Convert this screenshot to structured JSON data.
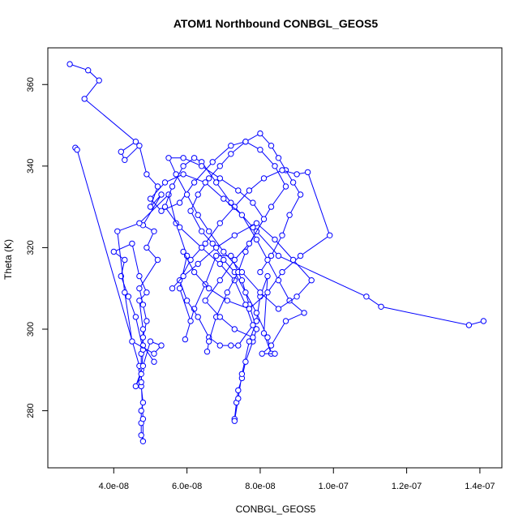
{
  "chart_data": {
    "type": "line",
    "title": "ATOM1 Northbound CONBGL_GEOS5",
    "xlabel": "CONBGL_GEOS5",
    "ylabel": "Theta (K)",
    "xlim": [
      2.2e-08,
      1.46e-07
    ],
    "ylim": [
      266,
      369
    ],
    "x_ticks": [
      {
        "value": 4e-08,
        "label": "4.0e-08"
      },
      {
        "value": 6e-08,
        "label": "6.0e-08"
      },
      {
        "value": 8e-08,
        "label": "8.0e-08"
      },
      {
        "value": 1e-07,
        "label": "1.0e-07"
      },
      {
        "value": 1.2e-07,
        "label": "1.2e-07"
      },
      {
        "value": 1.4e-07,
        "label": "1.4e-07"
      }
    ],
    "y_ticks": [
      {
        "value": 280,
        "label": "280"
      },
      {
        "value": 300,
        "label": "300"
      },
      {
        "value": 320,
        "label": "320"
      },
      {
        "value": 340,
        "label": "340"
      },
      {
        "value": 360,
        "label": "360"
      }
    ],
    "grid": false,
    "legend": "none",
    "series_color": "#0000ff",
    "marker": "open-circle",
    "series": [
      {
        "points": [
          [
            2.8e-08,
            365
          ],
          [
            3.3e-08,
            363.5
          ],
          [
            3.6e-08,
            361
          ],
          [
            3.2e-08,
            356.5
          ],
          [
            4.6e-08,
            346
          ],
          [
            4.2e-08,
            343.5
          ],
          [
            4.3e-08,
            341.5
          ],
          [
            4.7e-08,
            345
          ],
          [
            4.9e-08,
            338
          ],
          [
            5.2e-08,
            335
          ],
          [
            5e-08,
            330
          ],
          [
            5.3e-08,
            333
          ],
          [
            4.8e-08,
            325.5
          ],
          [
            5.1e-08,
            324
          ],
          [
            4.9e-08,
            320
          ],
          [
            5.2e-08,
            317
          ],
          [
            4.7e-08,
            310
          ],
          [
            4.8e-08,
            306
          ],
          [
            4.9e-08,
            302
          ],
          [
            4.8e-08,
            298
          ],
          [
            4.75e-08,
            294
          ],
          [
            4.75e-08,
            290
          ],
          [
            4.75e-08,
            286
          ],
          [
            4.8e-08,
            282
          ],
          [
            4.75e-08,
            280
          ],
          [
            4.75e-08,
            277
          ],
          [
            4.75e-08,
            274
          ],
          [
            4.8e-08,
            272.5
          ],
          [
            4.8e-08,
            278
          ],
          [
            4.75e-08,
            287
          ],
          [
            4.8e-08,
            295
          ],
          [
            4.6e-08,
            303
          ],
          [
            4.4e-08,
            308
          ],
          [
            4.2e-08,
            313
          ],
          [
            4.3e-08,
            317
          ],
          [
            4e-08,
            319
          ],
          [
            4.5e-08,
            321
          ],
          [
            4.7e-08,
            313
          ],
          [
            4.9e-08,
            309
          ],
          [
            4.7e-08,
            307
          ],
          [
            4.8e-08,
            300
          ],
          [
            4.8e-08,
            296
          ],
          [
            5.1e-08,
            292
          ]
        ]
      },
      {
        "points": [
          [
            2.95e-08,
            344.5
          ],
          [
            3e-08,
            344
          ],
          [
            4.7e-08,
            291
          ],
          [
            4.75e-08,
            289
          ],
          [
            4.6e-08,
            286
          ],
          [
            4.8e-08,
            291
          ],
          [
            5e-08,
            297
          ],
          [
            5.3e-08,
            296
          ],
          [
            5.1e-08,
            294
          ],
          [
            4.5e-08,
            297
          ],
          [
            4.3e-08,
            309
          ],
          [
            4.1e-08,
            324
          ],
          [
            4.7e-08,
            326
          ],
          [
            5.5e-08,
            333
          ],
          [
            5.7e-08,
            326
          ],
          [
            6e-08,
            318
          ],
          [
            5.8e-08,
            310
          ],
          [
            6.1e-08,
            302
          ],
          [
            5.95e-08,
            297.5
          ],
          [
            6.2e-08,
            305
          ],
          [
            6.5e-08,
            311
          ],
          [
            6.8e-08,
            318
          ],
          [
            7.2e-08,
            318
          ],
          [
            7.5e-08,
            312
          ],
          [
            7.7e-08,
            306
          ],
          [
            7.9e-08,
            300
          ],
          [
            7.8e-08,
            297
          ],
          [
            7.6e-08,
            292
          ],
          [
            7.5e-08,
            288
          ],
          [
            7.4e-08,
            285
          ],
          [
            7.35e-08,
            282
          ],
          [
            7.3e-08,
            278
          ],
          [
            7.3e-08,
            277.5
          ],
          [
            7.4e-08,
            283
          ],
          [
            7.5e-08,
            289
          ],
          [
            7.7e-08,
            297
          ],
          [
            7.9e-08,
            302
          ],
          [
            8e-08,
            308
          ],
          [
            8.2e-08,
            313
          ],
          [
            8.1e-08,
            299
          ],
          [
            8.3e-08,
            294
          ],
          [
            8.2e-08,
            298
          ],
          [
            7.9e-08,
            304
          ],
          [
            7.6e-08,
            309
          ],
          [
            7.3e-08,
            314
          ],
          [
            7e-08,
            317
          ],
          [
            6.7e-08,
            321
          ],
          [
            6.4e-08,
            324
          ],
          [
            6.1e-08,
            329
          ],
          [
            6.3e-08,
            333
          ],
          [
            6.6e-08,
            337
          ],
          [
            6.9e-08,
            340
          ],
          [
            7.2e-08,
            343
          ],
          [
            7.6e-08,
            346
          ],
          [
            8e-08,
            348
          ],
          [
            8.3e-08,
            345
          ],
          [
            8.5e-08,
            342
          ],
          [
            8.7e-08,
            339
          ],
          [
            8.9e-08,
            336
          ],
          [
            9.1e-08,
            333
          ],
          [
            8.8e-08,
            328
          ],
          [
            8.6e-08,
            323
          ],
          [
            8.3e-08,
            318
          ],
          [
            8e-08,
            314
          ]
        ]
      },
      {
        "points": [
          [
            1.41e-07,
            302
          ],
          [
            1.37e-07,
            301
          ],
          [
            1.13e-07,
            305.5
          ],
          [
            1.09e-07,
            308
          ],
          [
            8.5e-08,
            318
          ],
          [
            7.8e-08,
            325
          ],
          [
            7.2e-08,
            331
          ],
          [
            6.8e-08,
            336
          ],
          [
            6.4e-08,
            341
          ],
          [
            6.2e-08,
            342
          ],
          [
            5.9e-08,
            340
          ],
          [
            5.6e-08,
            335
          ],
          [
            5.4e-08,
            330
          ],
          [
            5.8e-08,
            325
          ],
          [
            6.4e-08,
            320
          ],
          [
            6.9e-08,
            316
          ],
          [
            7.3e-08,
            312
          ],
          [
            7.6e-08,
            306
          ],
          [
            7.8e-08,
            301
          ],
          [
            7.4e-08,
            296
          ],
          [
            7.2e-08,
            296
          ],
          [
            6.9e-08,
            296
          ],
          [
            6.6e-08,
            298
          ],
          [
            6.3e-08,
            303
          ],
          [
            6e-08,
            307
          ],
          [
            5.8e-08,
            312
          ],
          [
            6.1e-08,
            317
          ],
          [
            6.5e-08,
            321
          ],
          [
            6.9e-08,
            326
          ],
          [
            7.3e-08,
            330
          ],
          [
            7.7e-08,
            334
          ],
          [
            8.1e-08,
            337
          ],
          [
            8.6e-08,
            339
          ],
          [
            9e-08,
            338
          ],
          [
            9.3e-08,
            338.5
          ],
          [
            9.9e-08,
            323
          ],
          [
            9.1e-08,
            318
          ],
          [
            8.6e-08,
            314
          ],
          [
            8.2e-08,
            309
          ],
          [
            7.7e-08,
            305
          ],
          [
            7.1e-08,
            307
          ],
          [
            6.6e-08,
            310
          ],
          [
            6.2e-08,
            314
          ],
          [
            5.9e-08,
            319
          ]
        ]
      },
      {
        "points": [
          [
            6.55e-08,
            294.5
          ],
          [
            6.6e-08,
            297
          ],
          [
            6.8e-08,
            303
          ],
          [
            7.1e-08,
            309
          ],
          [
            7.4e-08,
            314
          ],
          [
            7.6e-08,
            319
          ],
          [
            7.9e-08,
            324
          ],
          [
            8.3e-08,
            330
          ],
          [
            8.7e-08,
            335
          ],
          [
            8.4e-08,
            340
          ],
          [
            8e-08,
            344
          ],
          [
            7.6e-08,
            346
          ],
          [
            7.2e-08,
            345
          ],
          [
            6.7e-08,
            341
          ],
          [
            6.2e-08,
            336
          ],
          [
            5.8e-08,
            331
          ],
          [
            5.3e-08,
            329
          ],
          [
            5e-08,
            332
          ],
          [
            5.4e-08,
            336
          ],
          [
            5.9e-08,
            338
          ],
          [
            6.5e-08,
            336
          ],
          [
            7e-08,
            332
          ],
          [
            7.5e-08,
            328
          ],
          [
            7.9e-08,
            322
          ],
          [
            8.2e-08,
            317
          ],
          [
            8.5e-08,
            312
          ],
          [
            8.8e-08,
            307
          ],
          [
            9.2e-08,
            304
          ],
          [
            8.7e-08,
            302
          ],
          [
            8.3e-08,
            296
          ],
          [
            8.05e-08,
            294
          ],
          [
            8.4e-08,
            294
          ]
        ]
      },
      {
        "points": [
          [
            5.6e-08,
            310
          ],
          [
            5.9e-08,
            313
          ],
          [
            6.3e-08,
            316
          ],
          [
            6.8e-08,
            320
          ],
          [
            7.3e-08,
            323
          ],
          [
            7.9e-08,
            326
          ],
          [
            8.4e-08,
            322
          ],
          [
            8.9e-08,
            317
          ],
          [
            9.4e-08,
            312
          ],
          [
            9e-08,
            308
          ],
          [
            8.5e-08,
            305
          ],
          [
            8e-08,
            309
          ],
          [
            7.5e-08,
            314
          ],
          [
            7e-08,
            319
          ],
          [
            6.6e-08,
            324
          ],
          [
            6.3e-08,
            328
          ],
          [
            6e-08,
            333
          ],
          [
            5.7e-08,
            338
          ],
          [
            5.5e-08,
            342
          ],
          [
            5.9e-08,
            342
          ],
          [
            6.4e-08,
            340
          ],
          [
            6.9e-08,
            337
          ],
          [
            7.4e-08,
            334
          ],
          [
            7.8e-08,
            331
          ],
          [
            8.1e-08,
            327
          ],
          [
            7.7e-08,
            321
          ],
          [
            7.3e-08,
            317
          ],
          [
            6.9e-08,
            312
          ],
          [
            6.5e-08,
            307
          ],
          [
            6.9e-08,
            303
          ],
          [
            7.3e-08,
            300
          ],
          [
            7.8e-08,
            298
          ]
        ]
      }
    ]
  }
}
